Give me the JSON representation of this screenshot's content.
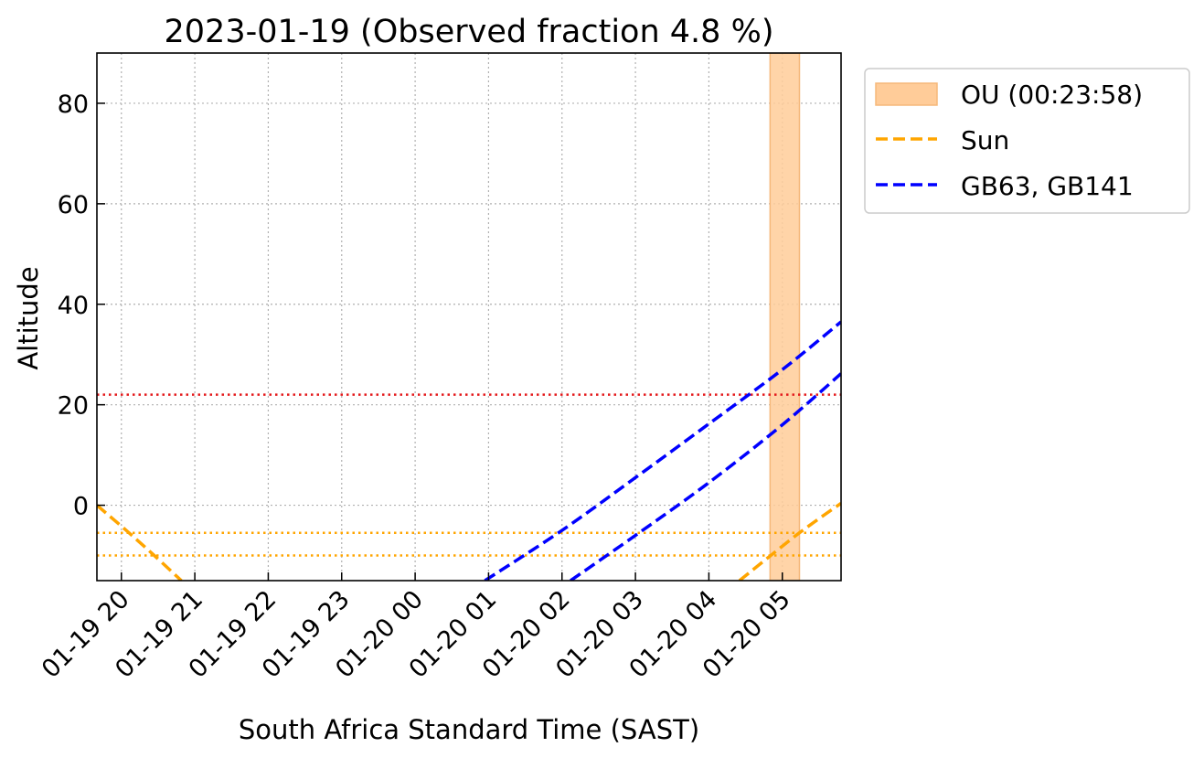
{
  "chart_data": {
    "type": "line",
    "title": "2023-01-19 (Observed fraction 4.8 %)",
    "xlabel": "South Africa Standard Time (SAST)",
    "ylabel": "Altitude",
    "x_unit": "hours",
    "xlim": [
      "2023-01-19 19:40",
      "2023-01-20 05:48"
    ],
    "ylim": [
      -15,
      90
    ],
    "x_ticks": [
      {
        "t": "2023-01-19 20:00",
        "label": "01-19 20"
      },
      {
        "t": "2023-01-19 21:00",
        "label": "01-19 21"
      },
      {
        "t": "2023-01-19 22:00",
        "label": "01-19 22"
      },
      {
        "t": "2023-01-19 23:00",
        "label": "01-19 23"
      },
      {
        "t": "2023-01-20 00:00",
        "label": "01-20 00"
      },
      {
        "t": "2023-01-20 01:00",
        "label": "01-20 01"
      },
      {
        "t": "2023-01-20 02:00",
        "label": "01-20 02"
      },
      {
        "t": "2023-01-20 03:00",
        "label": "01-20 03"
      },
      {
        "t": "2023-01-20 04:00",
        "label": "01-20 04"
      },
      {
        "t": "2023-01-20 05:00",
        "label": "01-20 05"
      }
    ],
    "y_ticks": [
      0,
      20,
      40,
      60,
      80
    ],
    "grid": true,
    "legend_position": "outside-right-top",
    "observation_window": {
      "label": "OU (00:23:58)",
      "start": "2023-01-20 04:50",
      "end": "2023-01-20 05:14",
      "color": "#ffcc99"
    },
    "horizontal_lines": [
      {
        "y": 22,
        "color": "#e41a1c",
        "style": "dotted"
      },
      {
        "y": -5.5,
        "color": "#ffa500",
        "style": "dotted"
      },
      {
        "y": -10,
        "color": "#ffa500",
        "style": "dotted"
      }
    ],
    "series": [
      {
        "name": "Sun",
        "color": "#ffa500",
        "style": "dashed",
        "segments": [
          [
            {
              "t": "2023-01-19 19:40",
              "y": 0
            },
            {
              "t": "2023-01-19 20:03",
              "y": -4.8
            },
            {
              "t": "2023-01-19 20:26",
              "y": -9.8
            },
            {
              "t": "2023-01-19 20:49",
              "y": -15
            }
          ],
          [
            {
              "t": "2023-01-20 04:25",
              "y": -15
            },
            {
              "t": "2023-01-20 04:48",
              "y": -10.5
            },
            {
              "t": "2023-01-20 05:15",
              "y": -5.3
            },
            {
              "t": "2023-01-20 05:48",
              "y": 0.4
            }
          ]
        ]
      },
      {
        "name": "GB63, GB141",
        "color": "#0000ff",
        "style": "dashed",
        "segments": [
          [
            {
              "t": "2023-01-20 00:57",
              "y": -15
            },
            {
              "t": "2023-01-20 02:00",
              "y": -5
            },
            {
              "t": "2023-01-20 03:00",
              "y": 5.5
            },
            {
              "t": "2023-01-20 04:00",
              "y": 16.2
            },
            {
              "t": "2023-01-20 05:00",
              "y": 27
            },
            {
              "t": "2023-01-20 05:48",
              "y": 36.5
            }
          ],
          [
            {
              "t": "2023-01-20 02:07",
              "y": -15
            },
            {
              "t": "2023-01-20 03:00",
              "y": -6
            },
            {
              "t": "2023-01-20 04:00",
              "y": 4.5
            },
            {
              "t": "2023-01-20 05:00",
              "y": 16
            },
            {
              "t": "2023-01-20 05:48",
              "y": 26.2
            }
          ]
        ]
      }
    ]
  }
}
